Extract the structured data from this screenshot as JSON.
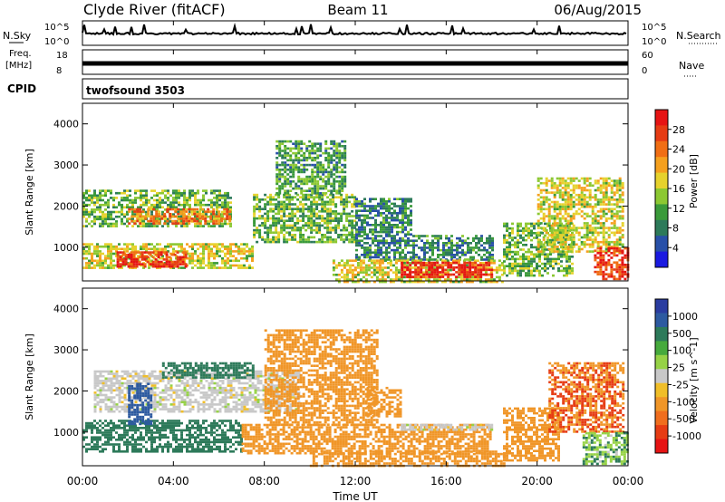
{
  "header": {
    "station": "Clyde River (fitACF)",
    "beam": "Beam 11",
    "date": "06/Aug/2015"
  },
  "strip_panels": {
    "nsky_label": "N.Sky",
    "nsearch_label": "N.Search",
    "nsky_ticks": [
      "10^5",
      "10^0"
    ],
    "nsearch_ticks": [
      "10^5",
      "10^0"
    ],
    "freq_label": "Freq.",
    "freq_unit": "[MHz]",
    "freq_ticks": [
      "18",
      "8"
    ],
    "nave_label": "Nave",
    "nave_ticks": [
      "60",
      "0"
    ],
    "cpid_label": "CPID",
    "cpid_value": "twofsound  3503"
  },
  "colors": {
    "power": [
      "#1a1ae0",
      "#2850a8",
      "#2d7a5a",
      "#3a9a3a",
      "#8cc832",
      "#e6d22d",
      "#f5a01e",
      "#f06e14",
      "#e63c14",
      "#e61414"
    ],
    "velocity": [
      "#2a3ca0",
      "#2d5aa0",
      "#2d7a5a",
      "#46aa3c",
      "#96d246",
      "#c8c8c8",
      "#f0be28",
      "#f09628",
      "#f06e1e",
      "#e63c14",
      "#e61414"
    ]
  },
  "chart_data": [
    {
      "type": "heatmap",
      "quantity": "Power",
      "colorbar_label": "Power [dB]",
      "colorbar_ticks": [
        "28",
        "24",
        "20",
        "16",
        "12",
        "8",
        "4"
      ],
      "ylabel": "Slant Range [km]",
      "y_ticks": [
        "4000",
        "3000",
        "2000",
        "1000"
      ],
      "ylim": [
        180,
        4500
      ],
      "xlim_hours": [
        0,
        24
      ],
      "x_ticks": [
        "00:00",
        "04:00",
        "08:00",
        "12:00",
        "16:00",
        "20:00",
        "00:00"
      ],
      "patches": [
        {
          "t": [
            0.0,
            6.5
          ],
          "r": [
            1500,
            2400
          ],
          "v": 14
        },
        {
          "t": [
            2.0,
            6.5
          ],
          "r": [
            1550,
            1950
          ],
          "v": 24
        },
        {
          "t": [
            0.0,
            7.5
          ],
          "r": [
            500,
            1100
          ],
          "v": 18
        },
        {
          "t": [
            1.5,
            4.5
          ],
          "r": [
            520,
            900
          ],
          "v": 28
        },
        {
          "t": [
            7.5,
            12.0
          ],
          "r": [
            1100,
            2300
          ],
          "v": 14
        },
        {
          "t": [
            8.5,
            11.5
          ],
          "r": [
            2300,
            3600
          ],
          "v": 12
        },
        {
          "t": [
            12.0,
            14.5
          ],
          "r": [
            1300,
            2200
          ],
          "v": 10
        },
        {
          "t": [
            12.0,
            18.0
          ],
          "r": [
            700,
            1300
          ],
          "v": 10
        },
        {
          "t": [
            11.0,
            18.5
          ],
          "r": [
            180,
            700
          ],
          "v": 18
        },
        {
          "t": [
            14.0,
            18.0
          ],
          "r": [
            250,
            650
          ],
          "v": 30
        },
        {
          "t": [
            18.5,
            21.5
          ],
          "r": [
            300,
            1600
          ],
          "v": 14
        },
        {
          "t": [
            20.0,
            23.8
          ],
          "r": [
            900,
            2700
          ],
          "v": 18
        },
        {
          "t": [
            22.5,
            24.0
          ],
          "r": [
            200,
            1000
          ],
          "v": 28
        }
      ]
    },
    {
      "type": "heatmap",
      "quantity": "Velocity",
      "colorbar_label": "Velocity [m s^-1]",
      "colorbar_ticks": [
        "1000",
        "500",
        "100",
        "25",
        "-25",
        "-100",
        "-500",
        "-1000"
      ],
      "ylabel": "Slant Range [km]",
      "y_ticks": [
        "4000",
        "3000",
        "2000",
        "1000"
      ],
      "ylim": [
        180,
        4500
      ],
      "xlim_hours": [
        0,
        24
      ],
      "x_ticks": [
        "00:00",
        "04:00",
        "08:00",
        "12:00",
        "16:00",
        "20:00",
        "00:00"
      ],
      "xlabel": "Time UT",
      "patches": [
        {
          "t": [
            0.5,
            9.5
          ],
          "r": [
            1500,
            2500
          ],
          "v": 0
        },
        {
          "t": [
            0.0,
            7.0
          ],
          "r": [
            500,
            1300
          ],
          "v": 100
        },
        {
          "t": [
            2.0,
            3.0
          ],
          "r": [
            1200,
            2200
          ],
          "v": 500
        },
        {
          "t": [
            3.5,
            7.5
          ],
          "r": [
            2300,
            2700
          ],
          "v": 100
        },
        {
          "t": [
            7.0,
            18.0
          ],
          "r": [
            500,
            1200
          ],
          "v": -200
        },
        {
          "t": [
            8.0,
            13.0
          ],
          "r": [
            1200,
            3500
          ],
          "v": -200
        },
        {
          "t": [
            12.5,
            14.0
          ],
          "r": [
            1400,
            2100
          ],
          "v": -200
        },
        {
          "t": [
            10.0,
            18.5
          ],
          "r": [
            180,
            550
          ],
          "v": -150
        },
        {
          "t": [
            14.0,
            18.0
          ],
          "r": [
            1050,
            1200
          ],
          "v": 0
        },
        {
          "t": [
            18.5,
            21.0
          ],
          "r": [
            300,
            1600
          ],
          "v": -200
        },
        {
          "t": [
            20.5,
            23.8
          ],
          "r": [
            1000,
            2700
          ],
          "v": -300
        },
        {
          "t": [
            22.0,
            24.0
          ],
          "r": [
            200,
            1000
          ],
          "v": 50
        }
      ]
    }
  ]
}
